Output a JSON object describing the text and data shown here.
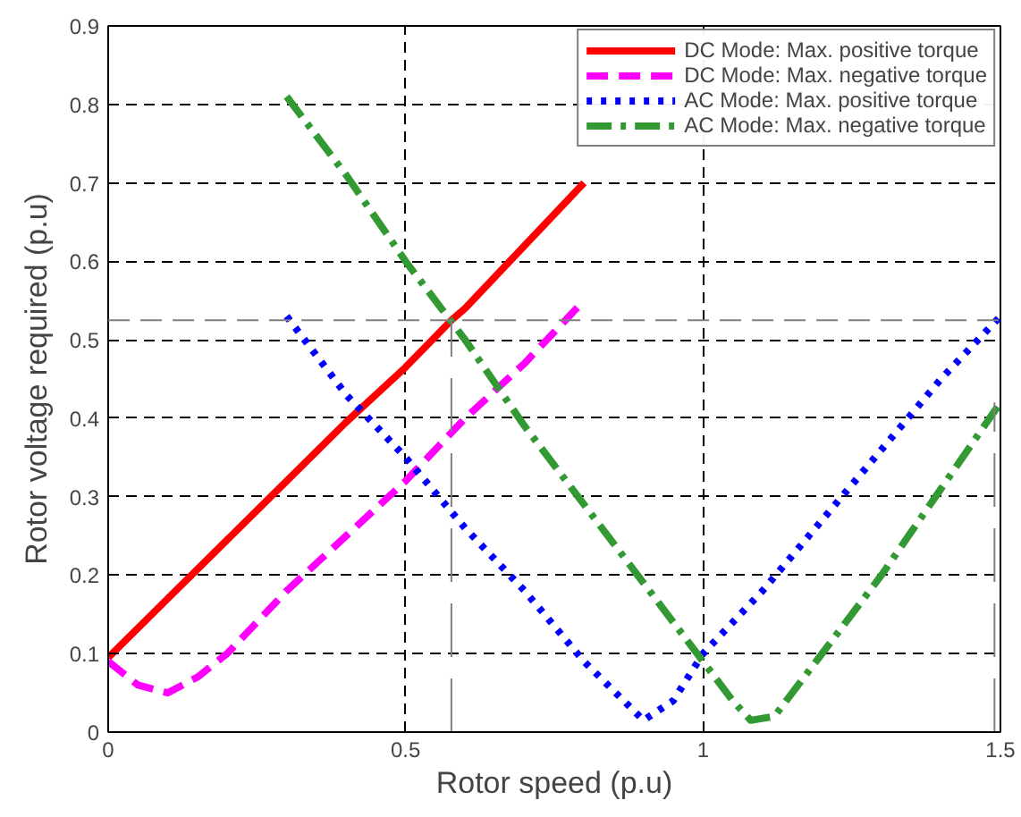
{
  "chart_data": {
    "type": "line",
    "xlabel": "Rotor speed (p.u)",
    "ylabel": "Rotor voltage required (p.u)",
    "xlim": [
      0,
      1.5
    ],
    "xticks": [
      0,
      0.5,
      1,
      1.5
    ],
    "ylim": [
      0,
      0.9
    ],
    "yticks": [
      0,
      0.1,
      0.2,
      0.3,
      0.4,
      0.5,
      0.6,
      0.7,
      0.8,
      0.9
    ],
    "grid": true,
    "legend": "top right",
    "ref_lines": [
      {
        "axis": "y",
        "value": 0.525,
        "color": "#808080",
        "line_style": "dashed"
      }
    ],
    "series": [
      {
        "name": "DC Mode: Max. positive torque",
        "color": "#ff0000",
        "line_style": "solid",
        "x": [
          0,
          0.1,
          0.2,
          0.3,
          0.4,
          0.5,
          0.577,
          0.6,
          0.7,
          0.8
        ],
        "values": [
          0.095,
          0.17,
          0.245,
          0.32,
          0.395,
          0.465,
          0.525,
          0.54,
          0.62,
          0.7
        ]
      },
      {
        "name": "DC Mode: Max. negative torque",
        "color": "#ff00ff",
        "line_style": "dashed",
        "x": [
          0,
          0.05,
          0.1,
          0.15,
          0.2,
          0.3,
          0.4,
          0.5,
          0.6,
          0.7,
          0.8
        ],
        "values": [
          0.09,
          0.06,
          0.05,
          0.07,
          0.1,
          0.18,
          0.25,
          0.32,
          0.4,
          0.47,
          0.55
        ]
      },
      {
        "name": "AC Mode: Max. positive torque",
        "color": "#0000ff",
        "line_style": "dotted",
        "x": [
          0.3,
          0.4,
          0.5,
          0.6,
          0.7,
          0.8,
          0.9,
          0.95,
          1.0,
          1.1,
          1.2,
          1.3,
          1.4,
          1.5
        ],
        "values": [
          0.53,
          0.43,
          0.35,
          0.26,
          0.18,
          0.09,
          0.015,
          0.04,
          0.1,
          0.18,
          0.27,
          0.36,
          0.45,
          0.53
        ]
      },
      {
        "name": "AC Mode: Max. negative torque",
        "color": "#339933",
        "line_style": "dashdot",
        "x": [
          0.3,
          0.4,
          0.5,
          0.6,
          0.7,
          0.8,
          0.9,
          1.0,
          1.05,
          1.08,
          1.12,
          1.2,
          1.3,
          1.4,
          1.5
        ],
        "values": [
          0.81,
          0.71,
          0.6,
          0.5,
          0.39,
          0.29,
          0.19,
          0.09,
          0.04,
          0.015,
          0.02,
          0.1,
          0.2,
          0.31,
          0.42
        ]
      },
      {
        "color": "#808080",
        "line_style": "longdash",
        "x": [
          0.577,
          0.577
        ],
        "values": [
          0,
          0.525
        ]
      },
      {
        "color": "#808080",
        "line_style": "longdash",
        "x": [
          1.49,
          1.49
        ],
        "values": [
          0,
          0.42
        ]
      }
    ]
  }
}
